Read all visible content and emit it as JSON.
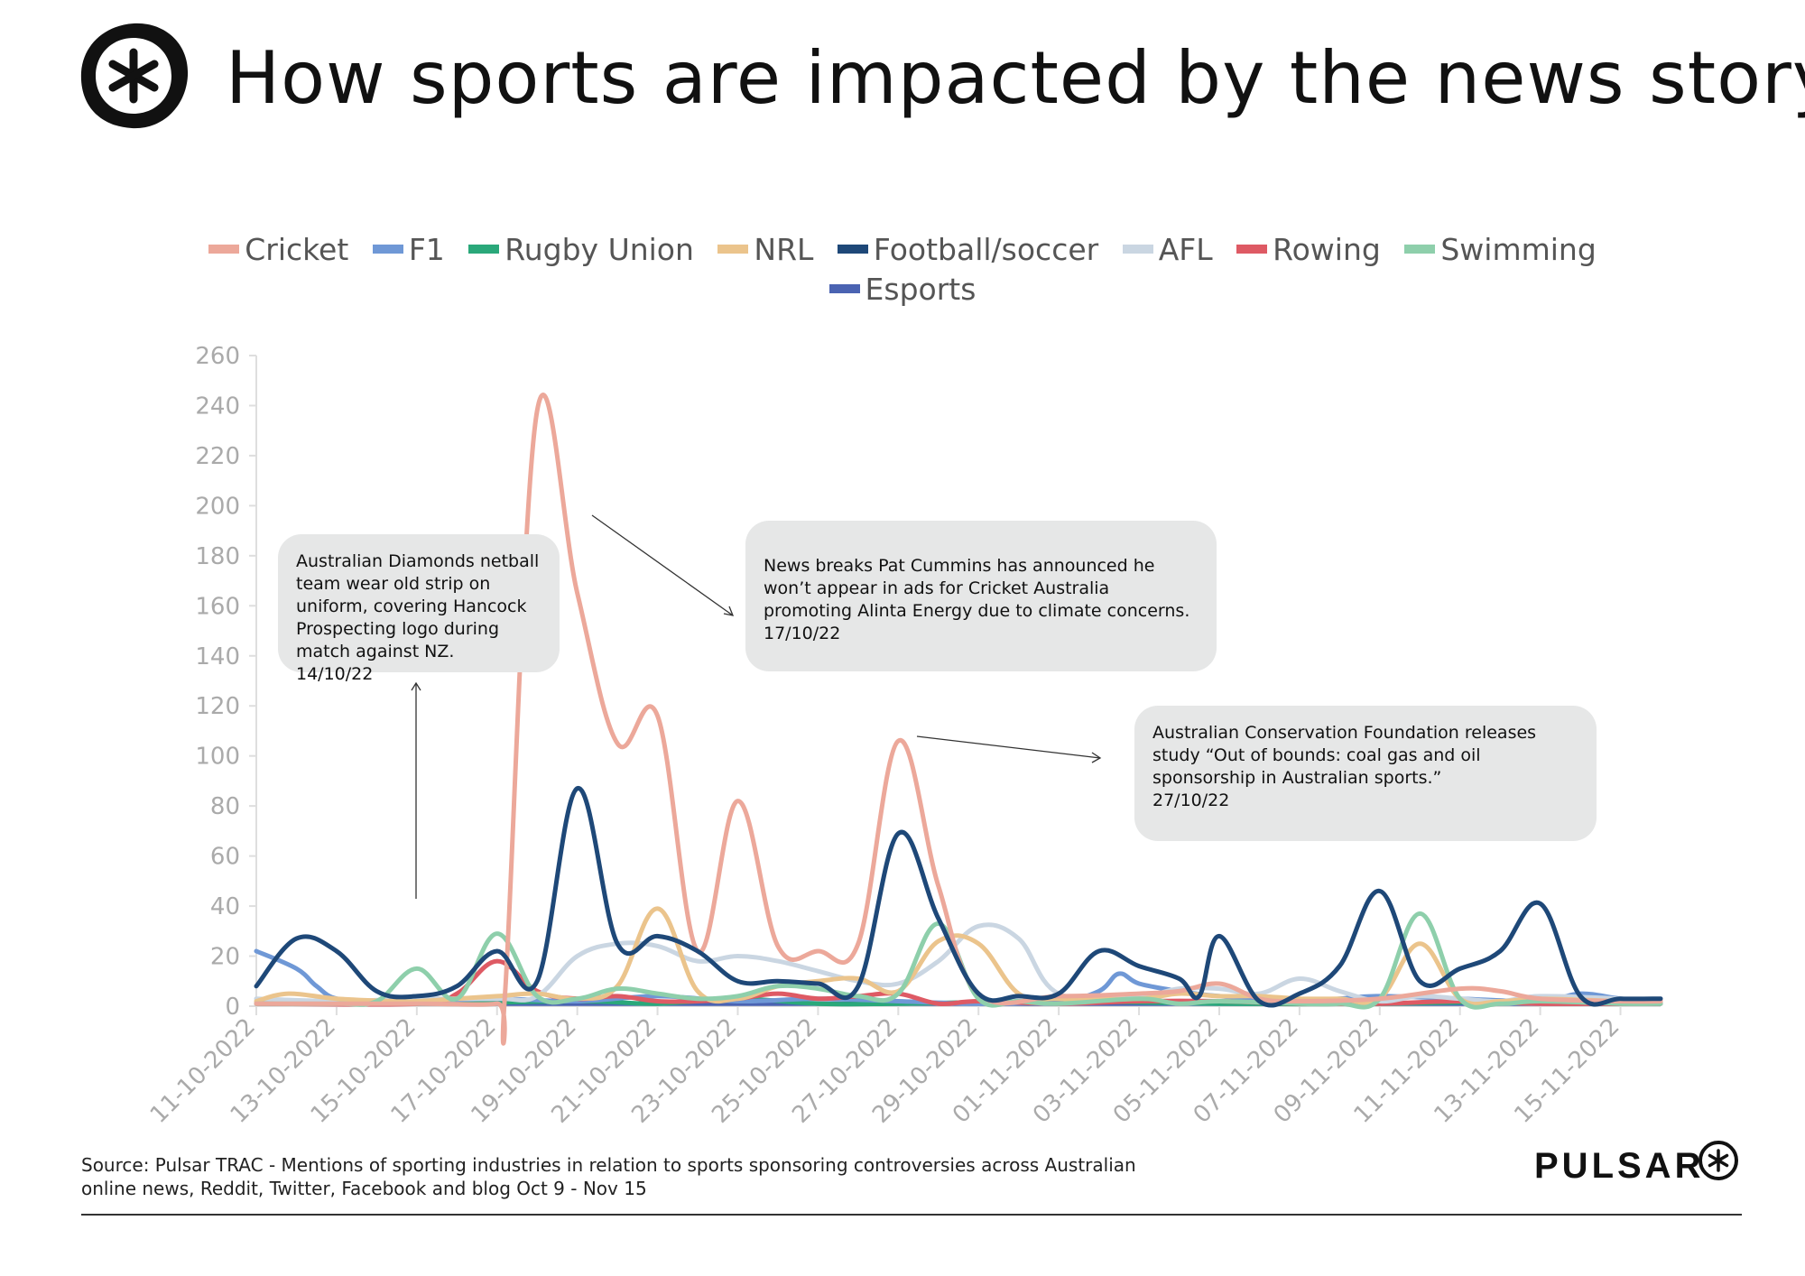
{
  "header": {
    "title": "How sports are impacted by the news story"
  },
  "colors": {
    "cricket": "#eca89a",
    "f1": "#6f98d6",
    "rugby_union": "#2aa87a",
    "nrl": "#ebc48c",
    "football_soccer": "#1e4878",
    "afl": "#cad6e2",
    "rowing": "#de5a64",
    "swimming": "#8ecfab",
    "esports": "#4a63b2",
    "annotation_bg": "#e6e7e7"
  },
  "chart_data": {
    "type": "line",
    "title": "How sports are impacted by the news story",
    "xlabel": "",
    "ylabel": "",
    "ylim": [
      0,
      260
    ],
    "yticks": [
      "0",
      "20",
      "40",
      "60",
      "80",
      "100",
      "120",
      "140",
      "160",
      "180",
      "200",
      "220",
      "240",
      "260"
    ],
    "xticks": [
      "11-10-2022",
      "13-10-2022",
      "15-10-2022",
      "17-10-2022",
      "19-10-2022",
      "21-10-2022",
      "23-10-2022",
      "25-10-2022",
      "27-10-2022",
      "29-10-2022",
      "01-11-2022",
      "03-11-2022",
      "05-11-2022",
      "07-11-2022",
      "09-11-2022",
      "11-11-2022",
      "13-11-2022",
      "15-11-2022"
    ],
    "legend_position": "top",
    "x_start": "11-10-2022",
    "series": [
      {
        "name": "Esports",
        "key": "esports",
        "values": [
          [
            0,
            1
          ],
          [
            4,
            1
          ],
          [
            8,
            1
          ],
          [
            12,
            1
          ],
          [
            16,
            1
          ],
          [
            20,
            1
          ],
          [
            24,
            1
          ],
          [
            28,
            1
          ],
          [
            32,
            1
          ],
          [
            35,
            1
          ]
        ]
      },
      {
        "name": "Rugby Union",
        "key": "rugby_union",
        "values": [
          [
            0,
            1
          ],
          [
            4,
            1
          ],
          [
            8,
            2
          ],
          [
            10,
            1
          ],
          [
            12,
            3
          ],
          [
            14,
            1
          ],
          [
            16,
            1
          ],
          [
            20,
            2
          ],
          [
            24,
            1
          ],
          [
            28,
            1
          ],
          [
            32,
            2
          ],
          [
            35,
            1
          ]
        ]
      },
      {
        "name": "F1",
        "key": "f1",
        "values": [
          [
            0,
            22
          ],
          [
            1,
            15
          ],
          [
            1.5,
            8
          ],
          [
            2,
            3
          ],
          [
            3,
            2
          ],
          [
            4,
            2
          ],
          [
            6,
            3
          ],
          [
            8,
            2
          ],
          [
            10,
            4
          ],
          [
            12,
            2
          ],
          [
            14,
            3
          ],
          [
            16,
            2
          ],
          [
            18,
            1
          ],
          [
            20,
            2
          ],
          [
            21,
            6
          ],
          [
            21.5,
            13
          ],
          [
            22,
            9
          ],
          [
            23,
            6
          ],
          [
            24,
            4
          ],
          [
            26,
            2
          ],
          [
            27,
            3
          ],
          [
            28,
            4
          ],
          [
            30,
            3
          ],
          [
            32,
            2
          ],
          [
            33,
            5
          ],
          [
            34,
            3
          ],
          [
            35,
            2
          ]
        ]
      },
      {
        "name": "Rowing",
        "key": "rowing",
        "values": [
          [
            0,
            1
          ],
          [
            4,
            1
          ],
          [
            5,
            5
          ],
          [
            6,
            18
          ],
          [
            7,
            6
          ],
          [
            8,
            3
          ],
          [
            9,
            4
          ],
          [
            10,
            2
          ],
          [
            11,
            2
          ],
          [
            12,
            3
          ],
          [
            13,
            5
          ],
          [
            14,
            3
          ],
          [
            15,
            4
          ],
          [
            16,
            5
          ],
          [
            17,
            1
          ],
          [
            18,
            2
          ],
          [
            20,
            1
          ],
          [
            22,
            2
          ],
          [
            24,
            2
          ],
          [
            26,
            1
          ],
          [
            28,
            1
          ],
          [
            30,
            2
          ],
          [
            32,
            1
          ],
          [
            35,
            1
          ]
        ]
      },
      {
        "name": "AFL",
        "key": "afl",
        "values": [
          [
            0,
            3
          ],
          [
            2,
            2
          ],
          [
            4,
            3
          ],
          [
            6,
            3
          ],
          [
            7,
            4
          ],
          [
            8,
            20
          ],
          [
            9,
            25
          ],
          [
            10,
            24
          ],
          [
            11,
            18
          ],
          [
            12,
            20
          ],
          [
            13,
            18
          ],
          [
            14,
            14
          ],
          [
            15,
            10
          ],
          [
            16,
            9
          ],
          [
            17,
            18
          ],
          [
            18,
            32
          ],
          [
            19,
            27
          ],
          [
            20,
            5
          ],
          [
            22,
            4
          ],
          [
            23,
            7
          ],
          [
            24,
            7
          ],
          [
            25,
            5
          ],
          [
            26,
            11
          ],
          [
            27,
            6
          ],
          [
            28,
            2
          ],
          [
            29,
            4
          ],
          [
            30,
            3
          ],
          [
            31,
            2
          ],
          [
            32,
            4
          ],
          [
            34,
            3
          ],
          [
            35,
            2
          ]
        ]
      },
      {
        "name": "NRL",
        "key": "nrl",
        "values": [
          [
            0,
            2
          ],
          [
            0.8,
            5
          ],
          [
            2,
            3
          ],
          [
            3.5,
            2
          ],
          [
            4,
            2
          ],
          [
            5,
            3
          ],
          [
            6,
            4
          ],
          [
            7,
            5
          ],
          [
            8,
            3
          ],
          [
            9,
            8
          ],
          [
            10,
            39
          ],
          [
            11,
            6
          ],
          [
            12,
            3
          ],
          [
            13,
            8
          ],
          [
            14,
            10
          ],
          [
            15,
            11
          ],
          [
            16,
            6
          ],
          [
            17,
            26
          ],
          [
            18,
            25
          ],
          [
            19,
            5
          ],
          [
            20,
            3
          ],
          [
            22,
            3
          ],
          [
            23,
            5
          ],
          [
            24,
            4
          ],
          [
            25,
            4
          ],
          [
            26,
            3
          ],
          [
            27,
            3
          ],
          [
            28,
            3
          ],
          [
            29,
            25
          ],
          [
            30,
            3
          ],
          [
            31,
            2
          ],
          [
            32,
            3
          ],
          [
            34,
            2
          ],
          [
            35,
            2
          ]
        ]
      },
      {
        "name": "Swimming",
        "key": "swimming",
        "values": [
          [
            0,
            1
          ],
          [
            2,
            1
          ],
          [
            3,
            2
          ],
          [
            4,
            15
          ],
          [
            5,
            3
          ],
          [
            6,
            29
          ],
          [
            7,
            4
          ],
          [
            8,
            3
          ],
          [
            9,
            7
          ],
          [
            10,
            5
          ],
          [
            11,
            3
          ],
          [
            12,
            4
          ],
          [
            13,
            8
          ],
          [
            14,
            7
          ],
          [
            15,
            4
          ],
          [
            16,
            5
          ],
          [
            17,
            33
          ],
          [
            18,
            3
          ],
          [
            19,
            2
          ],
          [
            20,
            1
          ],
          [
            22,
            3
          ],
          [
            23,
            1
          ],
          [
            24,
            2
          ],
          [
            26,
            1
          ],
          [
            27,
            1
          ],
          [
            28,
            3
          ],
          [
            29,
            37
          ],
          [
            30,
            3
          ],
          [
            31,
            1
          ],
          [
            32,
            2
          ],
          [
            34,
            1
          ],
          [
            35,
            1
          ]
        ]
      },
      {
        "name": "Cricket",
        "key": "cricket",
        "values": [
          [
            0,
            1
          ],
          [
            4,
            1
          ],
          [
            6,
            1
          ],
          [
            6.2,
            5
          ],
          [
            7,
            238
          ],
          [
            8,
            165
          ],
          [
            9,
            105
          ],
          [
            10,
            116
          ],
          [
            11,
            22
          ],
          [
            12,
            82
          ],
          [
            13,
            24
          ],
          [
            14,
            22
          ],
          [
            15,
            25
          ],
          [
            16,
            106
          ],
          [
            17,
            48
          ],
          [
            18,
            5
          ],
          [
            20,
            4
          ],
          [
            22,
            5
          ],
          [
            23,
            6
          ],
          [
            24,
            9
          ],
          [
            25,
            3
          ],
          [
            26,
            2
          ],
          [
            28,
            3
          ],
          [
            30,
            7
          ],
          [
            31,
            6
          ],
          [
            32,
            3
          ],
          [
            34,
            2
          ],
          [
            35,
            2
          ]
        ]
      },
      {
        "name": "Football/soccer",
        "key": "football_soccer",
        "values": [
          [
            0,
            8
          ],
          [
            1,
            27
          ],
          [
            2,
            22
          ],
          [
            3,
            6
          ],
          [
            4,
            4
          ],
          [
            5,
            8
          ],
          [
            6,
            22
          ],
          [
            7,
            10
          ],
          [
            8,
            87
          ],
          [
            9,
            25
          ],
          [
            10,
            28
          ],
          [
            11,
            22
          ],
          [
            12,
            10
          ],
          [
            13,
            10
          ],
          [
            14,
            9
          ],
          [
            15,
            8
          ],
          [
            16,
            69
          ],
          [
            17,
            35
          ],
          [
            18,
            5
          ],
          [
            19,
            4
          ],
          [
            20,
            5
          ],
          [
            21,
            22
          ],
          [
            22,
            16
          ],
          [
            23,
            11
          ],
          [
            23.5,
            4
          ],
          [
            24,
            28
          ],
          [
            25,
            2
          ],
          [
            26,
            5
          ],
          [
            27,
            16
          ],
          [
            28,
            46
          ],
          [
            29,
            10
          ],
          [
            30,
            15
          ],
          [
            31,
            22
          ],
          [
            32,
            41
          ],
          [
            33,
            4
          ],
          [
            34,
            3
          ],
          [
            35,
            3
          ]
        ]
      }
    ]
  },
  "annotations": [
    {
      "id": "netball",
      "text": "Australian Diamonds netball team wear old strip on uniform, covering Hancock Prospecting logo during match against NZ.",
      "date": "14/10/22"
    },
    {
      "id": "cummins",
      "text": "News breaks Pat Cummins has announced he won’t appear in ads for Cricket Australia promoting Alinta Energy due to climate concerns.",
      "date": "17/10/22"
    },
    {
      "id": "acf",
      "text": "Australian Conservation Foundation releases study “Out of bounds: coal gas and oil sponsorship in Australian sports.”",
      "date": "27/10/22"
    }
  ],
  "footer": {
    "source_line1": "Source: Pulsar TRAC - Mentions of sporting industries in relation to sports sponsoring controversies across Australian",
    "source_line2": "online news, Reddit, Twitter, Facebook and blog  Oct 9 - Nov 15",
    "brand": "PULSAR"
  },
  "legend_order": [
    "Cricket",
    "F1",
    "Rugby Union",
    "NRL",
    "Football/soccer",
    "AFL",
    "Rowing",
    "Swimming",
    "Esports"
  ]
}
